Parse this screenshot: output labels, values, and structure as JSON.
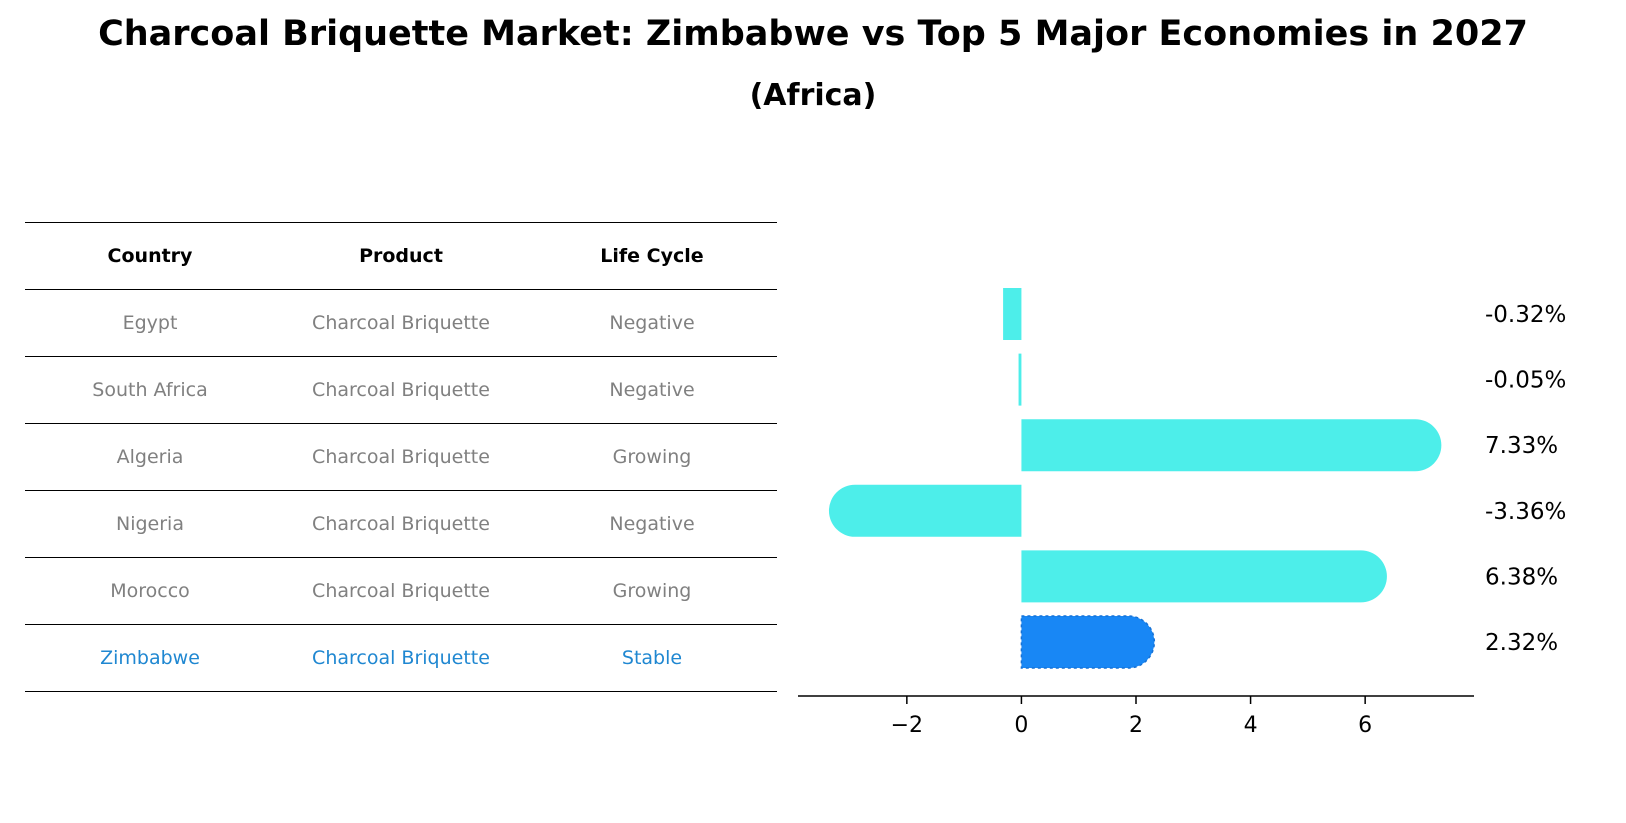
{
  "title": "Charcoal Briquette Market: Zimbabwe vs Top 5 Major Economies in 2027",
  "subtitle": "(Africa)",
  "table": {
    "headers": [
      "Country",
      "Product",
      "Life Cycle"
    ],
    "rows": [
      {
        "country": "Egypt",
        "product": "Charcoal Briquette",
        "life_cycle": "Negative"
      },
      {
        "country": "South Africa",
        "product": "Charcoal Briquette",
        "life_cycle": "Negative"
      },
      {
        "country": "Algeria",
        "product": "Charcoal Briquette",
        "life_cycle": "Growing"
      },
      {
        "country": "Nigeria",
        "product": "Charcoal Briquette",
        "life_cycle": "Negative"
      },
      {
        "country": "Morocco",
        "product": "Charcoal Briquette",
        "life_cycle": "Growing"
      },
      {
        "country": "Zimbabwe",
        "product": "Charcoal Briquette",
        "life_cycle": "Stable"
      }
    ]
  },
  "colors": {
    "bar": "#4deeea",
    "highlight_bar": "#1887f5",
    "highlight_text": "#1f87d1",
    "muted_text": "#808080"
  },
  "chart_data": {
    "type": "bar",
    "orientation": "horizontal",
    "categories": [
      "Egypt",
      "South Africa",
      "Algeria",
      "Nigeria",
      "Morocco",
      "Zimbabwe"
    ],
    "values": [
      -0.32,
      -0.05,
      7.33,
      -3.36,
      6.38,
      2.32
    ],
    "value_labels": [
      "-0.32%",
      "-0.05%",
      "7.33%",
      "-3.36%",
      "6.38%",
      "2.32%"
    ],
    "highlight": "Zimbabwe",
    "xticks": [
      -2,
      0,
      2,
      4,
      6
    ],
    "xtick_labels": [
      "−2",
      "0",
      "2",
      "4",
      "6"
    ],
    "xlim": [
      -3.9,
      7.9
    ],
    "grid": false
  }
}
